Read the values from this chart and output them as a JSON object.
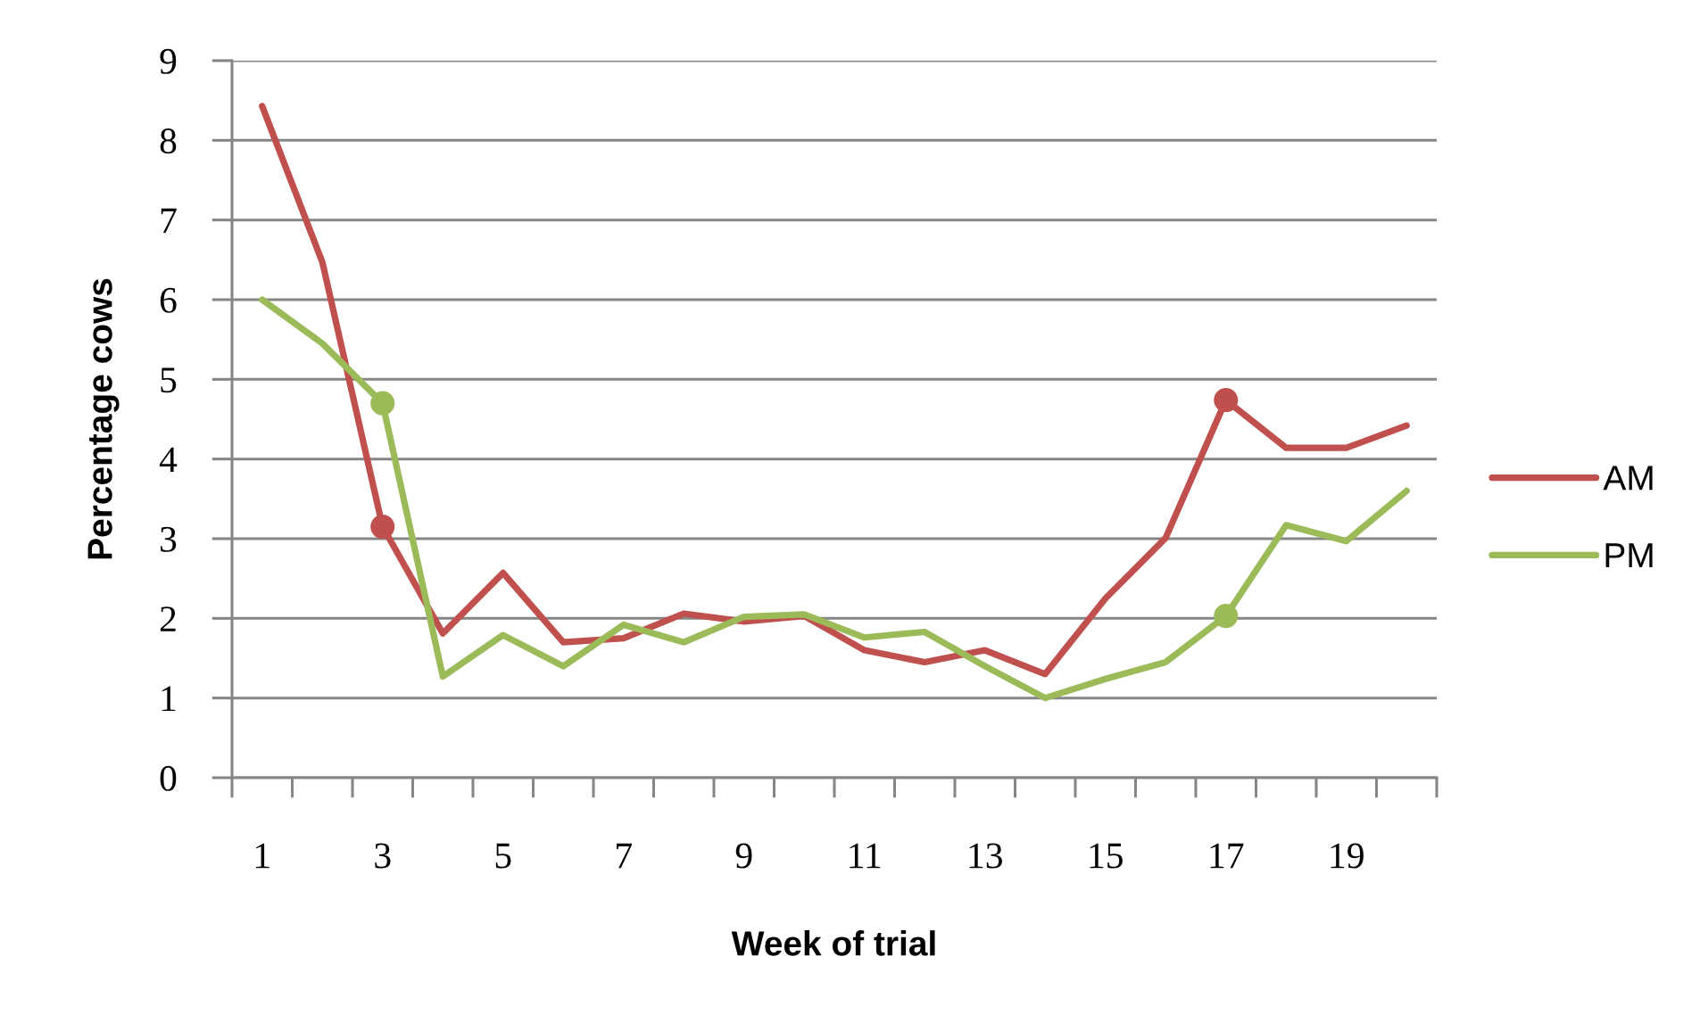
{
  "chart_data": {
    "type": "line",
    "xlabel": "Week of trial",
    "ylabel": "Percentage cows",
    "categories": [
      "1",
      null,
      "3",
      null,
      "5",
      null,
      "7",
      null,
      "9",
      null,
      "11",
      null,
      "13",
      null,
      "15",
      null,
      "17",
      null,
      "19",
      null
    ],
    "series": [
      {
        "name": "AM",
        "color": "#c0504d",
        "values": [
          8.43,
          6.47,
          3.15,
          1.81,
          2.57,
          1.7,
          1.75,
          2.06,
          1.96,
          2.03,
          1.6,
          1.45,
          1.6,
          1.3,
          2.25,
          3.01,
          4.74,
          4.14,
          4.14,
          4.42
        ]
      },
      {
        "name": "PM",
        "color": "#9bbb59",
        "values": [
          6.0,
          5.45,
          4.7,
          1.27,
          1.79,
          1.4,
          1.92,
          1.7,
          2.02,
          2.05,
          1.76,
          1.83,
          1.4,
          1.0,
          1.24,
          1.45,
          2.03,
          3.17,
          2.97,
          3.6
        ]
      },
      {
        "type": "scatter",
        "color": "#c0504d",
        "marker": "circle",
        "x": [
          "3",
          "17"
        ],
        "values": [
          3.15,
          4.74
        ]
      },
      {
        "type": "scatter",
        "color": "#9bbb59",
        "marker": "circle",
        "x": [
          "3",
          "17"
        ],
        "values": [
          4.7,
          2.03
        ]
      }
    ],
    "ylim": [
      0,
      9
    ],
    "yticks": [
      0,
      1,
      2,
      3,
      4,
      5,
      6,
      7,
      8,
      9
    ],
    "grid": "y",
    "legend": "right"
  }
}
